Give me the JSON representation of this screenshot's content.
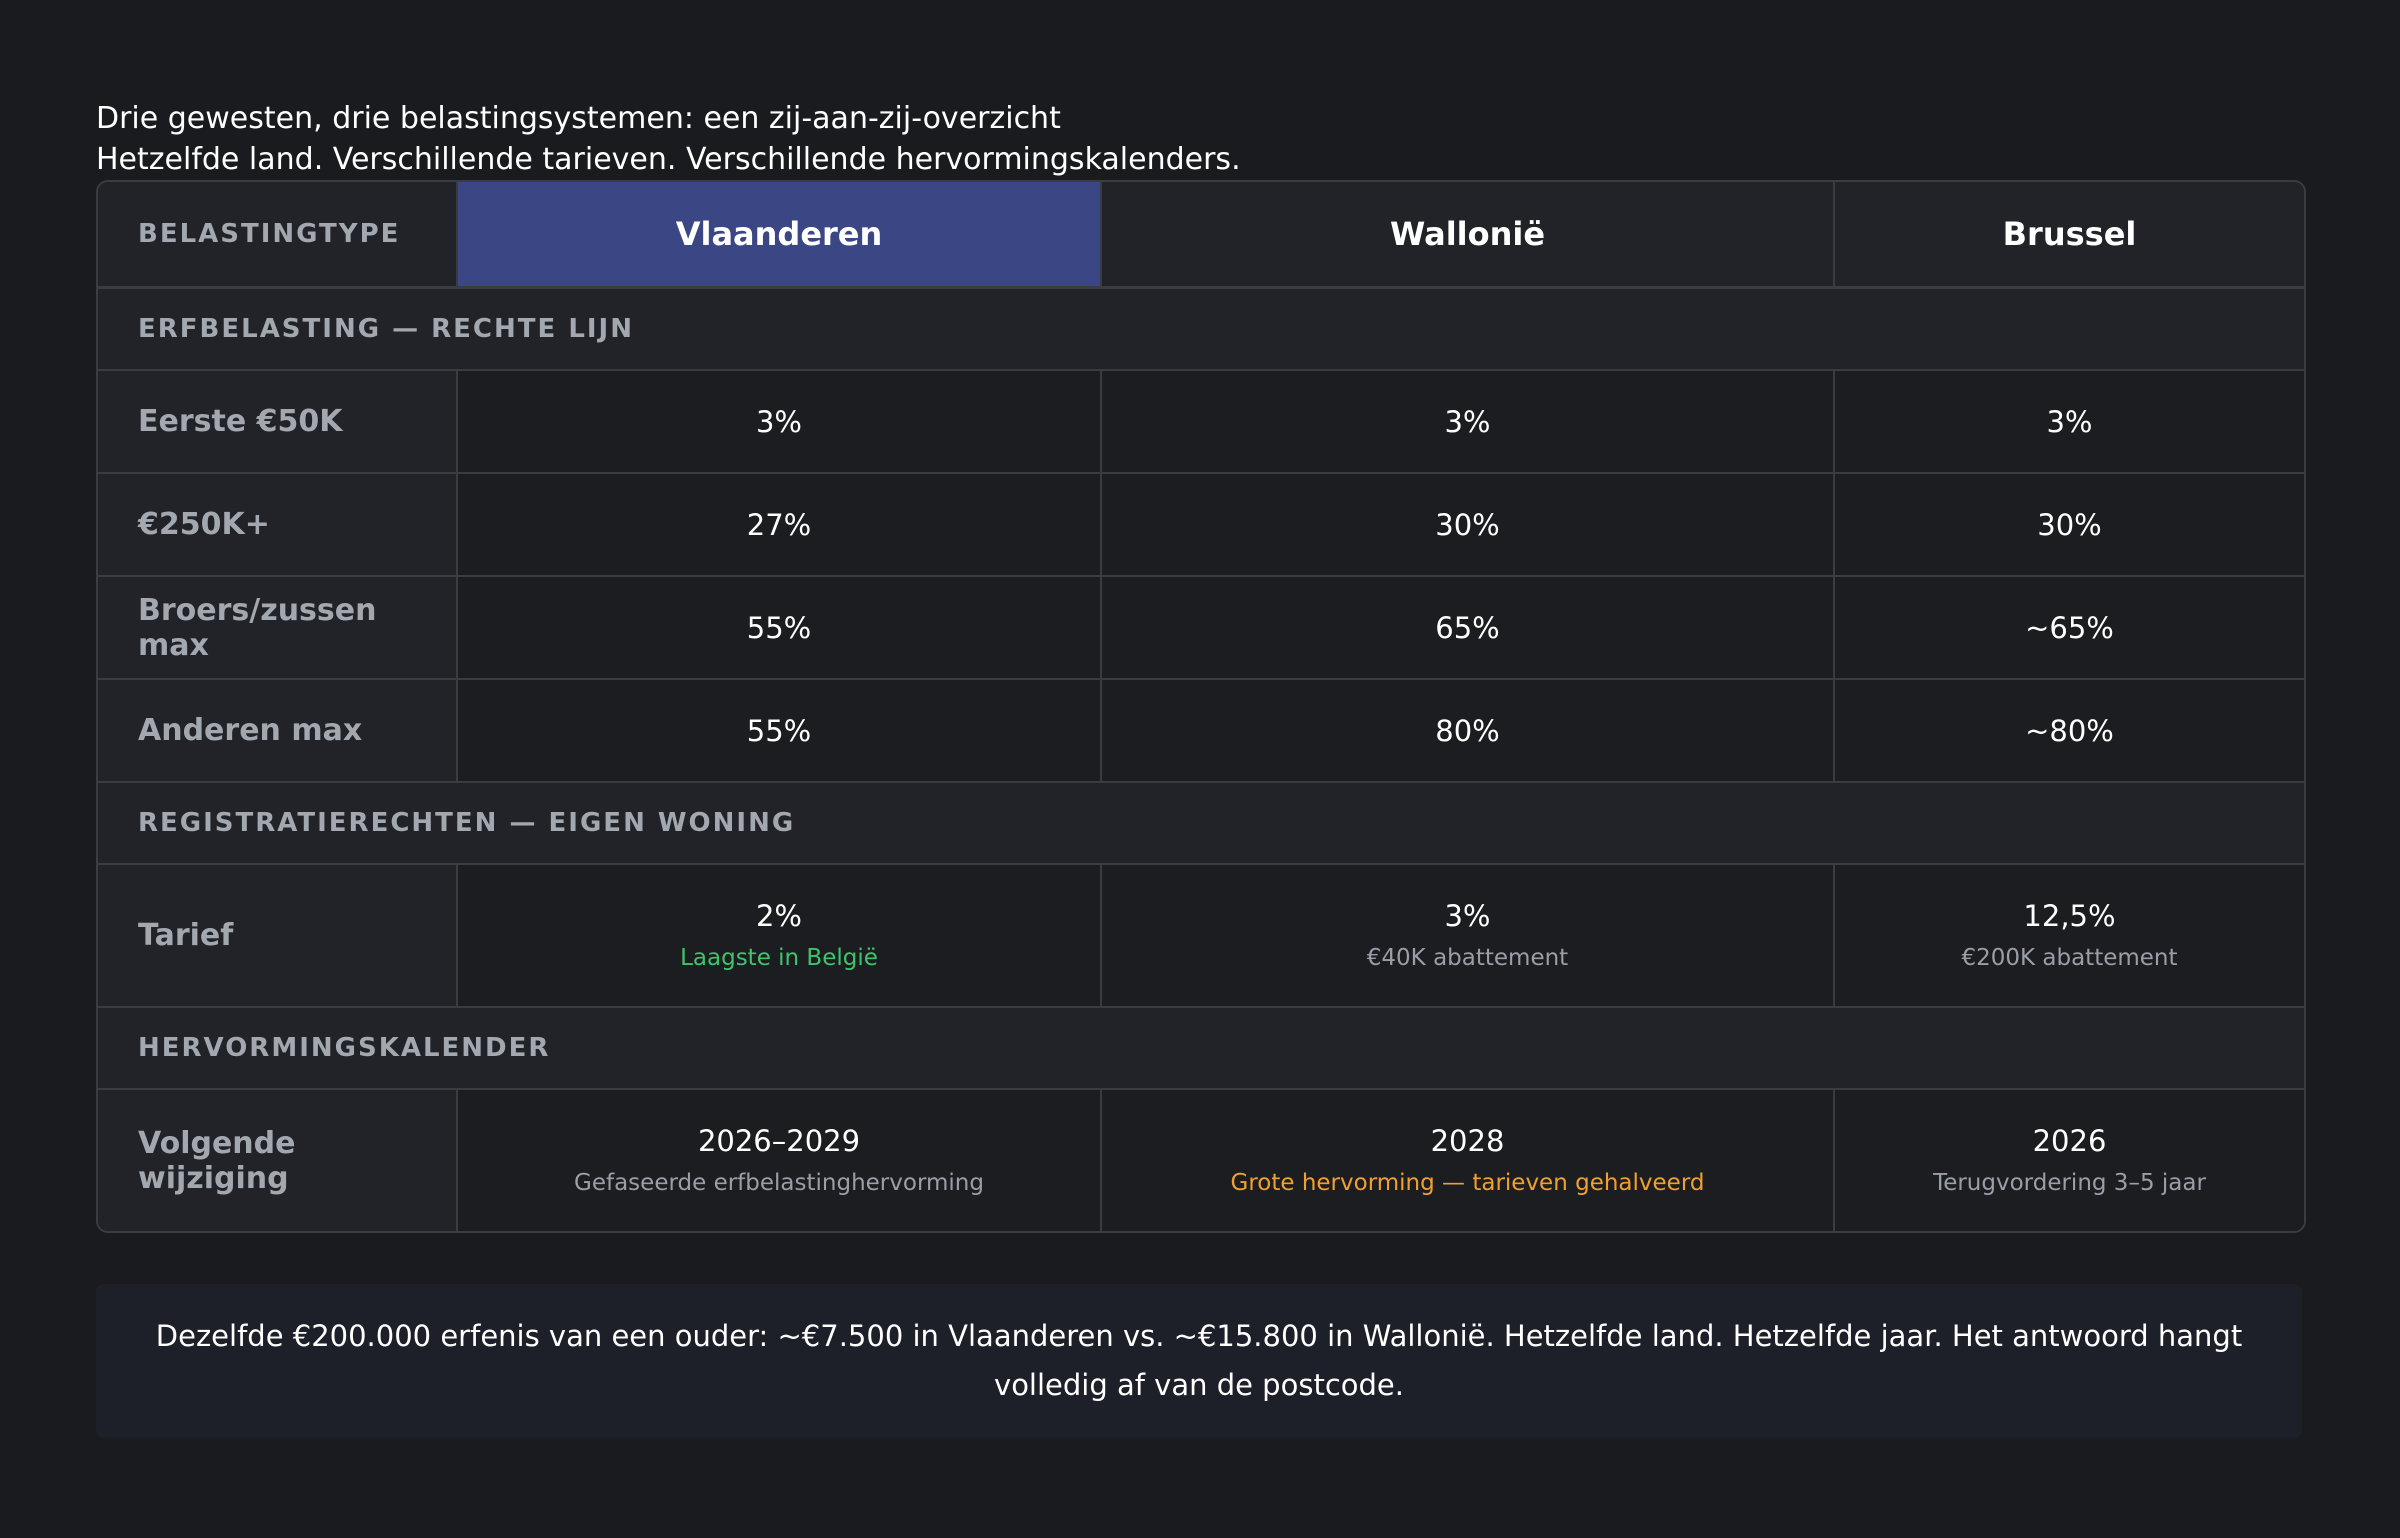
{
  "header": {
    "title": "Drie gewesten, drie belastingsystemen: een zij-aan-zij-overzicht",
    "subtitle": "Hetzelfde land. Verschillende tarieven. Verschillende hervormingskalenders."
  },
  "table": {
    "corner_label": "BELASTINGTYPE",
    "columns": [
      "Vlaanderen",
      "Wallonië",
      "Brussel"
    ],
    "highlight_color": "#3b4685",
    "sections": [
      {
        "title": "ERFBELASTING — RECHTE LIJN",
        "rows": [
          {
            "label": "Eerste €50K",
            "values": [
              "3%",
              "3%",
              "3%"
            ]
          },
          {
            "label": "€250K+",
            "values": [
              "27%",
              "30%",
              "30%"
            ]
          },
          {
            "label": "Broers/zussen max",
            "values": [
              "55%",
              "65%",
              "~65%"
            ]
          },
          {
            "label": "Anderen max",
            "values": [
              "55%",
              "80%",
              "~80%"
            ]
          }
        ]
      },
      {
        "title": "REGISTRATIERECHTEN — EIGEN WONING",
        "rows": [
          {
            "label": "Tarief",
            "values": [
              "2%",
              "3%",
              "12,5%"
            ],
            "notes": [
              "Laagste in België",
              "€40K abattement",
              "€200K abattement"
            ],
            "note_colors": [
              "#3ec46d",
              "#9a9ea7",
              "#9a9ea7"
            ]
          }
        ]
      },
      {
        "title": "HERVORMINGSKALENDER",
        "rows": [
          {
            "label": "Volgende wijziging",
            "values": [
              "2026–2029",
              "2028",
              "2026"
            ],
            "notes": [
              "Gefaseerde erfbelastinghervorming",
              "Grote hervorming — tarieven gehalveerd",
              "Terugvordering 3–5 jaar"
            ],
            "note_colors": [
              "#9a9ea7",
              "#f0a030",
              "#9a9ea7"
            ]
          }
        ]
      }
    ]
  },
  "footer": {
    "text": "Dezelfde €200.000 erfenis van een ouder: ~€7.500 in Vlaanderen vs. ~€15.800 in Wallonië. Hetzelfde land. Hetzelfde jaar. Het antwoord hangt volledig af van de postcode."
  }
}
